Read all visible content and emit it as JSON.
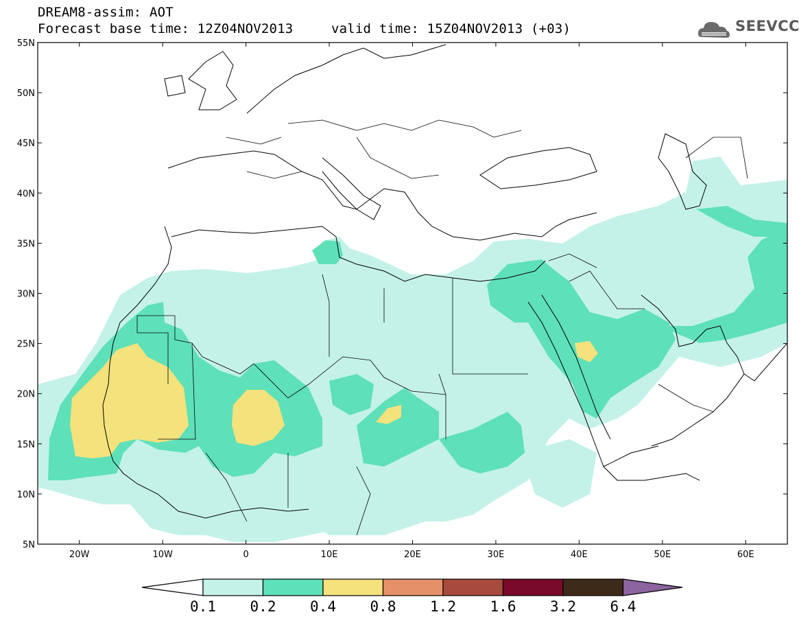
{
  "header": {
    "title": "DREAM8-assim: AOT",
    "base_time": "Forecast base time: 12Z04NOV2013",
    "valid_time": "valid time: 15Z04NOV2013 (+03)"
  },
  "logo": {
    "text": "SEEVCCC",
    "icon": "cloud-logo-icon",
    "color": "#5a5a5a"
  },
  "map": {
    "lon_range": [
      -25,
      65
    ],
    "lat_range": [
      5,
      55
    ],
    "lat_ticks": [
      "5N",
      "10N",
      "15N",
      "20N",
      "25N",
      "30N",
      "35N",
      "40N",
      "45N",
      "50N",
      "55N"
    ],
    "lon_ticks": [
      "20W",
      "10W",
      "0",
      "10E",
      "20E",
      "30E",
      "40E",
      "50E",
      "60E"
    ]
  },
  "colorbar": {
    "labels": [
      "0.1",
      "0.2",
      "0.4",
      "0.8",
      "1.2",
      "1.6",
      "3.2",
      "6.4"
    ],
    "colors": [
      "#c4f2e8",
      "#5ee0b9",
      "#f4e27c",
      "#e6906a",
      "#a94a3e",
      "#7a0a2a",
      "#3e2a18",
      "#8c64a0"
    ]
  }
}
